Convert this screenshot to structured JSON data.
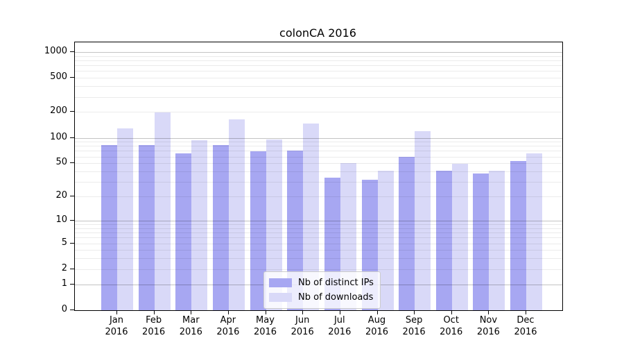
{
  "title": "colonCA 2016",
  "legend": {
    "items": [
      {
        "label": "Nb of distinct IPs",
        "color": "#a7a7f2"
      },
      {
        "label": "Nb of downloads",
        "color": "#d9d9f8"
      }
    ]
  },
  "chart_data": {
    "type": "bar",
    "title": "colonCA 2016",
    "categories": [
      "Jan",
      "Feb",
      "Mar",
      "Apr",
      "May",
      "Jun",
      "Jul",
      "Aug",
      "Sep",
      "Oct",
      "Nov",
      "Dec"
    ],
    "x_tick_second_line": "2016",
    "series": [
      {
        "name": "Nb of distinct IPs",
        "color": "#a7a7f2",
        "values": [
          82,
          82,
          65,
          82,
          69,
          70,
          34,
          32,
          60,
          41,
          38,
          53
        ]
      },
      {
        "name": "Nb of downloads",
        "color": "#d9d9f8",
        "values": [
          128,
          197,
          94,
          165,
          96,
          146,
          50,
          41,
          120,
          49,
          41,
          66
        ]
      }
    ],
    "xlabel": "",
    "ylabel": "",
    "yscale": "log1p",
    "yticks": [
      0,
      1,
      2,
      5,
      10,
      20,
      50,
      100,
      200,
      500,
      1000
    ],
    "ylim": [
      0,
      1296
    ],
    "grid": {
      "major_lines": [
        1,
        10,
        100,
        1000
      ],
      "minor_multipliers": [
        2,
        3,
        4,
        5,
        6,
        7,
        8,
        9
      ],
      "minor_decades": [
        1,
        10,
        100
      ]
    },
    "legend_position": "lower center"
  }
}
